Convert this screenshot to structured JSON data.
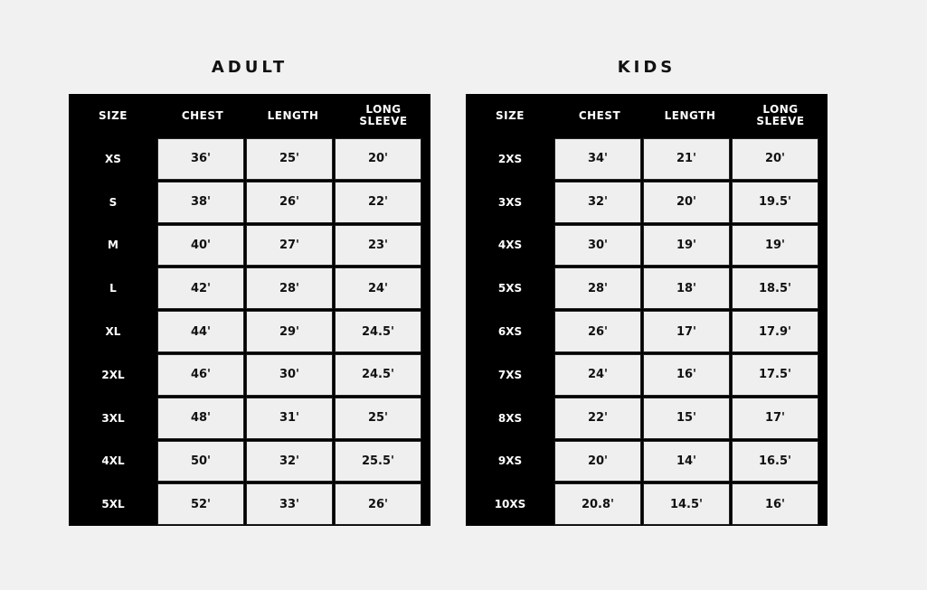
{
  "adult": {
    "title": "ADULT",
    "headers": [
      "SIZE",
      "CHEST",
      "LENGTH",
      "LONG\nSLEEVE"
    ],
    "rows": [
      [
        "XS",
        "36'",
        "25'",
        "20'"
      ],
      [
        "S",
        "38'",
        "26'",
        "22'"
      ],
      [
        "M",
        "40'",
        "27'",
        "23'"
      ],
      [
        "L",
        "42'",
        "28'",
        "24'"
      ],
      [
        "XL",
        "44'",
        "29'",
        "24.5'"
      ],
      [
        "2XL",
        "46'",
        "30'",
        "24.5'"
      ],
      [
        "3XL",
        "48'",
        "31'",
        "25'"
      ],
      [
        "4XL",
        "50'",
        "32'",
        "25.5'"
      ],
      [
        "5XL",
        "52'",
        "33'",
        "26'"
      ]
    ]
  },
  "kids": {
    "title": "KIDS",
    "headers": [
      "SIZE",
      "CHEST",
      "LENGTH",
      "LONG\nSLEEVE"
    ],
    "rows": [
      [
        "2XS",
        "34'",
        "21'",
        "20'"
      ],
      [
        "3XS",
        "32'",
        "20'",
        "19.5'"
      ],
      [
        "4XS",
        "30'",
        "19'",
        "19'"
      ],
      [
        "5XS",
        "28'",
        "18'",
        "18.5'"
      ],
      [
        "6XS",
        "26'",
        "17'",
        "17.9'"
      ],
      [
        "7XS",
        "24'",
        "16'",
        "17.5'"
      ],
      [
        "8XS",
        "22'",
        "15'",
        "17'"
      ],
      [
        "9XS",
        "20'",
        "14'",
        "16.5'"
      ],
      [
        "10XS",
        "20.8'",
        "14.5'",
        "16'"
      ]
    ]
  }
}
